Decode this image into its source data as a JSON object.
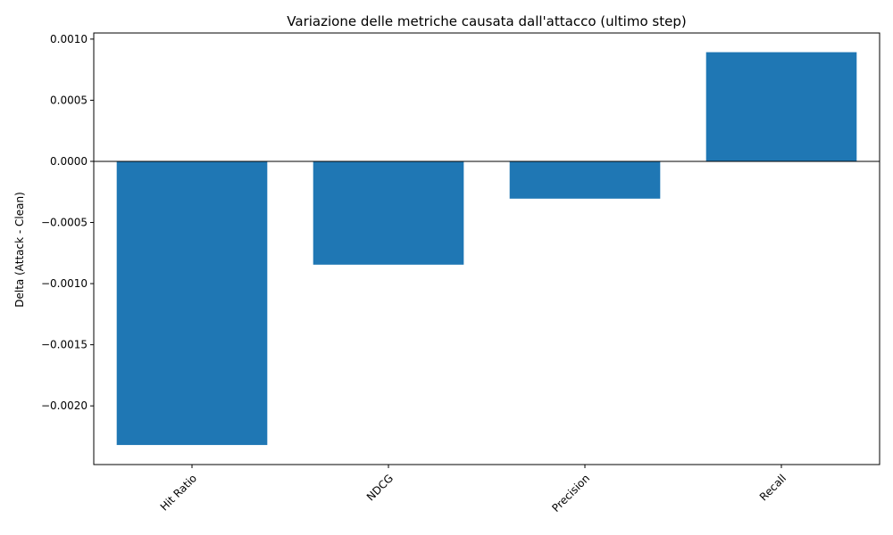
{
  "chart_data": {
    "type": "bar",
    "title": "Variazione delle metriche causata dall'attacco (ultimo step)",
    "xlabel": "",
    "ylabel": "Delta (Attack - Clean)",
    "categories": [
      "Hit Ratio",
      "NDCG",
      "Precision",
      "Recall"
    ],
    "values": [
      -0.00232,
      -0.000845,
      -0.000305,
      0.000893
    ],
    "ylim": [
      -0.00248,
      0.00105
    ],
    "yticks": [
      {
        "value": 0.001,
        "label": "0.0010"
      },
      {
        "value": 0.0005,
        "label": "0.0005"
      },
      {
        "value": 0.0,
        "label": "0.0000"
      },
      {
        "value": -0.0005,
        "label": "−0.0005"
      },
      {
        "value": -0.001,
        "label": "−0.0010"
      },
      {
        "value": -0.0015,
        "label": "−0.0015"
      },
      {
        "value": -0.002,
        "label": "−0.0020"
      }
    ],
    "bar_color": "#1f77b4",
    "zero_line": true,
    "grid": false,
    "xtick_rotation_deg": 45
  }
}
